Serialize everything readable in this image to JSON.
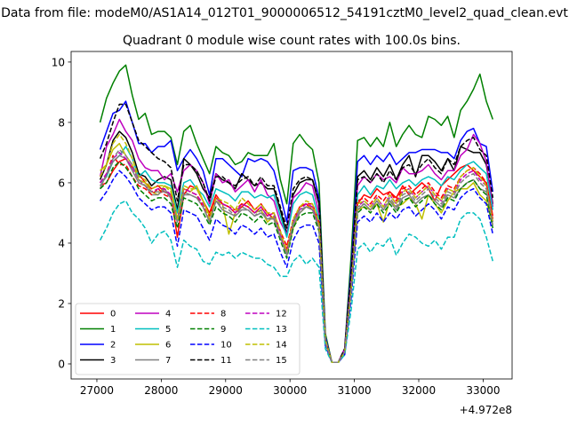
{
  "figure": {
    "suptitle": "Data from file: modeM0/AS1A14_012T01_9000006512_54191cztM0_level2_quad_clean.evt",
    "offset_label": "+4.972e8"
  },
  "chart_data": {
    "type": "line",
    "title": "Quadrant 0 module wise count rates with 100.0s bins.",
    "xlabel": "",
    "ylabel": "",
    "x_offset": 497200000,
    "xlim": [
      26600,
      33450
    ],
    "ylim": [
      -0.5,
      10.35
    ],
    "xticks": [
      27000,
      28000,
      29000,
      30000,
      31000,
      32000,
      33000
    ],
    "xtick_labels": [
      "27000",
      "28000",
      "29000",
      "30000",
      "31000",
      "32000",
      "33000"
    ],
    "yticks": [
      0,
      2,
      4,
      6,
      8,
      10
    ],
    "ytick_labels": [
      "0",
      "2",
      "4",
      "6",
      "8",
      "10"
    ],
    "grid": false,
    "legend_position": "lower-left",
    "legend_columns": 4,
    "x": [
      27050,
      27150,
      27250,
      27350,
      27450,
      27550,
      27650,
      27750,
      27850,
      27950,
      28050,
      28150,
      28250,
      28350,
      28450,
      28550,
      28650,
      28750,
      28850,
      28950,
      29050,
      29150,
      29250,
      29350,
      29450,
      29550,
      29650,
      29750,
      29850,
      29950,
      30050,
      30150,
      30250,
      30350,
      30450,
      30550,
      30650,
      30750,
      30850,
      30950,
      31050,
      31150,
      31250,
      31350,
      31450,
      31550,
      31650,
      31750,
      31850,
      31950,
      32050,
      32150,
      32250,
      32350,
      32450,
      32550,
      32650,
      32750,
      32850,
      32950,
      33050,
      33150
    ],
    "series": [
      {
        "name": "0",
        "color": "#ff0000",
        "dash": "solid",
        "values": [
          5.9,
          6.0,
          6.4,
          6.7,
          6.8,
          6.5,
          6.3,
          6.0,
          5.8,
          5.9,
          5.7,
          5.6,
          4.2,
          5.6,
          5.9,
          5.8,
          5.4,
          5.0,
          5.6,
          5.3,
          5.2,
          5.0,
          5.2,
          5.4,
          5.1,
          5.3,
          5.0,
          4.8,
          4.2,
          3.8,
          4.7,
          5.2,
          5.3,
          5.1,
          4.7,
          0.7,
          0.05,
          0.05,
          0.4,
          2.6,
          5.3,
          5.6,
          5.5,
          5.8,
          5.6,
          5.7,
          5.5,
          5.9,
          5.6,
          5.8,
          6.0,
          5.8,
          5.4,
          5.9,
          6.1,
          6.3,
          6.5,
          6.6,
          6.4,
          6.2,
          6.0,
          4.9
        ]
      },
      {
        "name": "1",
        "color": "#008000",
        "dash": "solid",
        "values": [
          8.0,
          8.8,
          9.3,
          9.7,
          9.9,
          8.9,
          8.1,
          8.3,
          7.6,
          7.7,
          7.7,
          7.5,
          6.6,
          7.7,
          7.9,
          7.3,
          6.8,
          6.3,
          7.2,
          7.0,
          6.9,
          6.6,
          6.7,
          7.0,
          6.9,
          6.9,
          6.9,
          7.3,
          6.1,
          5.3,
          7.3,
          7.6,
          7.3,
          7.1,
          6.0,
          1.0,
          0.05,
          0.05,
          0.5,
          3.6,
          7.4,
          7.5,
          7.2,
          7.5,
          7.2,
          8.0,
          7.2,
          7.6,
          7.9,
          7.6,
          7.5,
          8.2,
          8.1,
          7.9,
          8.2,
          7.5,
          8.4,
          8.7,
          9.1,
          9.6,
          8.7,
          8.1
        ]
      },
      {
        "name": "2",
        "color": "#0000ff",
        "dash": "solid",
        "values": [
          7.1,
          7.7,
          8.3,
          8.4,
          8.7,
          8.0,
          7.3,
          7.3,
          7.0,
          7.2,
          7.2,
          7.4,
          6.4,
          6.8,
          7.1,
          6.8,
          6.4,
          5.6,
          6.8,
          6.8,
          6.6,
          6.4,
          6.2,
          6.8,
          6.7,
          6.8,
          6.7,
          6.4,
          5.6,
          4.7,
          6.4,
          6.5,
          6.5,
          6.4,
          5.5,
          0.9,
          0.05,
          0.05,
          0.5,
          3.2,
          6.7,
          6.9,
          6.6,
          6.9,
          6.7,
          7.0,
          6.6,
          6.8,
          7.0,
          7.0,
          7.1,
          7.1,
          7.1,
          7.0,
          7.0,
          6.8,
          7.4,
          7.7,
          7.8,
          7.3,
          7.2,
          5.7
        ]
      },
      {
        "name": "3",
        "color": "#000000",
        "dash": "solid",
        "values": [
          6.1,
          6.6,
          7.4,
          7.7,
          7.5,
          7.0,
          6.3,
          6.2,
          5.9,
          6.1,
          6.2,
          6.1,
          5.1,
          6.8,
          6.6,
          6.3,
          5.8,
          5.5,
          6.3,
          6.1,
          6.0,
          5.8,
          6.3,
          6.1,
          5.9,
          6.0,
          5.8,
          5.8,
          5.1,
          4.3,
          5.6,
          6.0,
          6.1,
          6.1,
          5.3,
          0.8,
          0.05,
          0.05,
          0.5,
          3.0,
          6.2,
          6.4,
          6.1,
          6.5,
          6.2,
          6.6,
          6.1,
          6.6,
          6.9,
          6.2,
          6.9,
          6.9,
          6.7,
          6.4,
          6.8,
          6.4,
          7.2,
          7.1,
          7.0,
          7.0,
          6.6,
          5.3
        ]
      },
      {
        "name": "4",
        "color": "#bf00bf",
        "dash": "solid",
        "values": [
          6.2,
          7.2,
          7.6,
          8.1,
          7.7,
          7.4,
          6.8,
          6.5,
          6.4,
          6.4,
          6.1,
          6.3,
          5.7,
          6.4,
          6.6,
          6.4,
          6.0,
          5.3,
          6.3,
          6.0,
          6.1,
          5.7,
          5.9,
          6.1,
          5.7,
          6.1,
          5.6,
          5.4,
          4.7,
          4.3,
          5.5,
          5.7,
          6.0,
          5.9,
          5.0,
          0.8,
          0.05,
          0.05,
          0.5,
          2.9,
          5.9,
          6.2,
          6.0,
          6.3,
          6.1,
          6.2,
          6.0,
          6.5,
          6.3,
          6.3,
          6.4,
          6.6,
          6.3,
          6.1,
          6.4,
          6.4,
          6.9,
          7.1,
          7.6,
          7.3,
          6.7,
          5.2
        ]
      },
      {
        "name": "5",
        "color": "#00bfbf",
        "dash": "solid",
        "values": [
          6.0,
          6.2,
          6.7,
          6.9,
          7.2,
          6.8,
          6.2,
          6.4,
          6.1,
          6.0,
          6.0,
          5.9,
          5.0,
          6.0,
          6.1,
          5.8,
          5.6,
          5.2,
          5.8,
          5.7,
          5.6,
          5.4,
          5.7,
          5.7,
          5.5,
          5.6,
          5.5,
          5.6,
          4.9,
          4.2,
          5.3,
          5.6,
          5.7,
          5.6,
          4.8,
          0.8,
          0.05,
          0.05,
          0.4,
          2.7,
          5.6,
          5.9,
          5.6,
          5.9,
          5.8,
          6.1,
          5.8,
          6.0,
          6.1,
          5.9,
          6.1,
          6.2,
          6.1,
          5.9,
          6.2,
          6.1,
          6.4,
          6.6,
          6.7,
          6.5,
          6.3,
          5.1
        ]
      },
      {
        "name": "6",
        "color": "#bfbf00",
        "dash": "solid",
        "values": [
          6.4,
          6.6,
          7.1,
          7.3,
          6.9,
          6.6,
          6.1,
          6.0,
          5.7,
          5.6,
          5.9,
          5.8,
          4.8,
          5.8,
          5.7,
          5.9,
          5.4,
          4.9,
          5.4,
          5.3,
          4.3,
          5.0,
          5.3,
          5.2,
          5.0,
          5.1,
          4.7,
          4.9,
          4.4,
          3.6,
          4.5,
          5.0,
          5.2,
          5.2,
          4.6,
          0.8,
          0.05,
          0.05,
          0.4,
          2.5,
          5.1,
          5.2,
          5.1,
          5.3,
          4.7,
          5.4,
          5.2,
          5.3,
          5.5,
          5.3,
          4.8,
          5.6,
          5.3,
          5.0,
          5.4,
          5.7,
          5.8,
          5.8,
          6.0,
          5.6,
          5.4,
          4.6
        ]
      },
      {
        "name": "7",
        "color": "#808080",
        "dash": "solid",
        "values": [
          5.8,
          6.3,
          6.7,
          6.9,
          6.8,
          6.4,
          6.0,
          5.9,
          5.6,
          5.6,
          5.8,
          5.5,
          4.7,
          5.6,
          5.6,
          5.5,
          5.2,
          4.7,
          5.4,
          5.1,
          5.0,
          4.9,
          5.1,
          5.1,
          4.9,
          5.0,
          4.8,
          4.8,
          4.2,
          3.6,
          4.6,
          5.0,
          5.2,
          5.1,
          4.5,
          0.7,
          0.05,
          0.05,
          0.4,
          2.5,
          5.1,
          5.3,
          5.1,
          5.4,
          5.1,
          5.4,
          5.1,
          5.5,
          5.6,
          5.3,
          5.5,
          5.6,
          5.4,
          5.2,
          5.6,
          5.5,
          5.8,
          6.0,
          6.1,
          5.8,
          5.7,
          4.7
        ]
      },
      {
        "name": "8",
        "color": "#ff0000",
        "dash": "dashed",
        "values": [
          6.0,
          6.3,
          6.9,
          6.6,
          6.6,
          6.2,
          5.9,
          5.8,
          5.6,
          5.8,
          5.6,
          5.5,
          4.8,
          5.8,
          5.7,
          5.6,
          5.2,
          4.9,
          5.5,
          5.3,
          5.2,
          5.1,
          5.3,
          5.2,
          5.0,
          5.2,
          4.9,
          5.0,
          4.4,
          3.9,
          4.8,
          5.2,
          5.3,
          5.3,
          4.7,
          0.8,
          0.05,
          0.05,
          0.4,
          2.6,
          5.4,
          5.5,
          5.3,
          5.6,
          5.4,
          5.7,
          5.4,
          5.8,
          5.9,
          5.6,
          5.8,
          6.0,
          5.7,
          5.5,
          5.9,
          5.8,
          6.2,
          6.4,
          6.5,
          6.3,
          6.0,
          4.8
        ]
      },
      {
        "name": "9",
        "color": "#008000",
        "dash": "dashed",
        "values": [
          5.8,
          6.0,
          6.5,
          6.7,
          6.5,
          6.2,
          5.8,
          5.6,
          5.4,
          5.5,
          5.5,
          5.3,
          4.5,
          5.5,
          5.4,
          5.3,
          5.0,
          4.6,
          5.2,
          5.0,
          4.9,
          4.7,
          5.0,
          4.9,
          4.7,
          4.9,
          4.6,
          4.7,
          4.1,
          3.5,
          4.5,
          4.9,
          5.0,
          5.0,
          4.4,
          0.7,
          0.05,
          0.05,
          0.4,
          2.4,
          5.0,
          5.2,
          5.0,
          5.3,
          5.0,
          5.3,
          5.0,
          5.4,
          5.5,
          5.2,
          5.4,
          5.6,
          5.3,
          5.1,
          5.5,
          5.4,
          5.8,
          6.0,
          6.1,
          5.8,
          5.6,
          4.5
        ]
      },
      {
        "name": "10",
        "color": "#0000ff",
        "dash": "dashed",
        "values": [
          5.4,
          5.7,
          6.1,
          6.4,
          6.2,
          5.9,
          5.5,
          5.3,
          5.1,
          5.2,
          5.2,
          5.0,
          3.9,
          5.1,
          5.0,
          4.9,
          4.5,
          4.1,
          4.8,
          4.6,
          4.5,
          4.3,
          4.6,
          4.5,
          4.3,
          4.5,
          4.2,
          4.3,
          3.7,
          3.2,
          4.1,
          4.5,
          4.6,
          4.6,
          4.0,
          0.6,
          0.05,
          0.05,
          0.3,
          2.2,
          4.7,
          4.9,
          4.7,
          5.0,
          4.7,
          5.0,
          4.8,
          5.1,
          5.2,
          4.9,
          5.1,
          5.3,
          5.1,
          4.8,
          5.2,
          5.1,
          5.5,
          5.7,
          5.8,
          5.5,
          5.3,
          4.3
        ]
      },
      {
        "name": "11",
        "color": "#000000",
        "dash": "dashed",
        "values": [
          6.8,
          7.3,
          8.0,
          8.6,
          8.6,
          8.0,
          7.4,
          7.2,
          7.0,
          6.8,
          6.7,
          6.5,
          5.4,
          6.6,
          6.6,
          6.4,
          6.0,
          5.4,
          6.2,
          6.2,
          6.0,
          5.9,
          6.1,
          6.2,
          5.9,
          6.2,
          5.9,
          5.9,
          5.2,
          4.5,
          5.8,
          6.1,
          6.2,
          6.1,
          5.4,
          0.8,
          0.05,
          0.05,
          0.5,
          2.9,
          6.1,
          6.2,
          6.0,
          6.3,
          6.0,
          6.4,
          6.1,
          6.5,
          6.6,
          6.3,
          6.6,
          6.8,
          6.5,
          6.3,
          6.8,
          6.6,
          7.2,
          7.4,
          7.5,
          7.1,
          6.9,
          5.5
        ]
      },
      {
        "name": "12",
        "color": "#bf00bf",
        "dash": "dashed",
        "values": [
          6.0,
          6.3,
          6.8,
          7.0,
          6.8,
          6.5,
          6.1,
          5.9,
          5.7,
          5.8,
          5.8,
          5.6,
          4.8,
          5.8,
          5.7,
          5.6,
          5.3,
          4.8,
          5.5,
          5.3,
          5.2,
          5.0,
          5.3,
          5.2,
          5.0,
          5.2,
          4.9,
          5.0,
          4.3,
          3.7,
          4.7,
          5.1,
          5.3,
          5.2,
          4.6,
          0.7,
          0.05,
          0.05,
          0.4,
          2.5,
          5.2,
          5.4,
          5.2,
          5.5,
          5.2,
          5.6,
          5.3,
          5.7,
          5.8,
          5.5,
          5.7,
          5.9,
          5.6,
          5.4,
          5.8,
          5.7,
          6.1,
          6.3,
          6.4,
          6.1,
          5.9,
          4.7
        ]
      },
      {
        "name": "13",
        "color": "#00bfbf",
        "dash": "dashed",
        "values": [
          4.1,
          4.5,
          5.0,
          5.3,
          5.4,
          5.0,
          4.8,
          4.5,
          4.0,
          4.3,
          4.4,
          4.1,
          3.2,
          4.1,
          3.9,
          3.8,
          3.4,
          3.3,
          3.7,
          3.6,
          3.7,
          3.5,
          3.7,
          3.6,
          3.5,
          3.5,
          3.3,
          3.2,
          2.9,
          2.9,
          3.4,
          3.6,
          3.3,
          3.5,
          3.2,
          0.5,
          0.05,
          0.05,
          0.3,
          1.8,
          3.8,
          4.0,
          3.7,
          4.0,
          3.9,
          4.2,
          3.6,
          4.0,
          4.3,
          4.2,
          4.0,
          3.9,
          4.1,
          3.8,
          4.2,
          4.2,
          4.8,
          5.0,
          5.0,
          4.8,
          4.2,
          3.4
        ]
      },
      {
        "name": "14",
        "color": "#bfbf00",
        "dash": "dashed",
        "values": [
          6.2,
          6.6,
          7.3,
          7.6,
          7.3,
          6.8,
          6.2,
          6.1,
          5.8,
          5.9,
          5.9,
          5.7,
          4.8,
          5.9,
          5.8,
          5.8,
          5.4,
          4.8,
          5.5,
          5.4,
          5.3,
          5.1,
          5.5,
          5.3,
          5.1,
          5.3,
          5.0,
          5.0,
          4.4,
          3.7,
          4.8,
          5.2,
          5.4,
          5.3,
          4.7,
          0.8,
          0.05,
          0.05,
          0.4,
          2.5,
          5.3,
          5.4,
          5.2,
          5.5,
          5.2,
          5.6,
          5.3,
          5.7,
          5.8,
          5.5,
          5.7,
          5.9,
          5.6,
          5.4,
          5.8,
          5.7,
          6.2,
          6.4,
          6.5,
          6.2,
          5.9,
          4.7
        ]
      },
      {
        "name": "15",
        "color": "#808080",
        "dash": "dashed",
        "values": [
          5.9,
          6.2,
          6.8,
          7.1,
          6.9,
          6.6,
          6.1,
          5.9,
          5.7,
          5.7,
          5.7,
          5.5,
          4.7,
          5.7,
          5.6,
          5.5,
          5.2,
          4.7,
          5.4,
          5.2,
          5.1,
          4.9,
          5.2,
          5.1,
          4.9,
          5.1,
          4.8,
          4.9,
          4.2,
          3.6,
          4.7,
          5.1,
          5.2,
          5.1,
          4.5,
          0.7,
          0.05,
          0.05,
          0.4,
          2.4,
          5.2,
          5.3,
          5.1,
          5.4,
          5.1,
          5.5,
          5.2,
          5.6,
          5.7,
          5.4,
          5.6,
          5.8,
          5.5,
          5.3,
          5.7,
          5.6,
          6.0,
          6.2,
          6.3,
          6.0,
          5.8,
          4.6
        ]
      }
    ]
  }
}
